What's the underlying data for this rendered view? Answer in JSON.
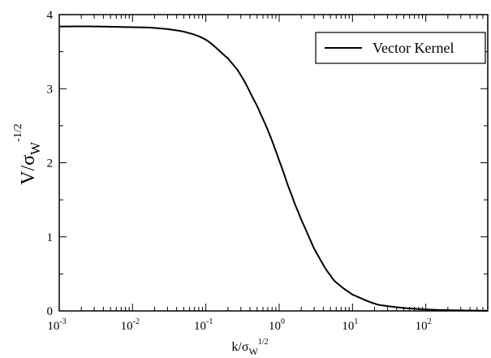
{
  "chart_data": {
    "type": "line",
    "xscale": "log",
    "xlim": [
      0.001,
      700
    ],
    "ylim": [
      0,
      4
    ],
    "x_ticks": [
      {
        "value": 0.001,
        "base": "10",
        "exp": "-3"
      },
      {
        "value": 0.01,
        "base": "10",
        "exp": "-2"
      },
      {
        "value": 0.1,
        "base": "10",
        "exp": "-1"
      },
      {
        "value": 1,
        "base": "10",
        "exp": "0"
      },
      {
        "value": 10,
        "base": "10",
        "exp": "1"
      },
      {
        "value": 100,
        "base": "10",
        "exp": "2"
      }
    ],
    "y_ticks": [
      {
        "value": 0,
        "label": "0"
      },
      {
        "value": 1,
        "label": "1"
      },
      {
        "value": 2,
        "label": "2"
      },
      {
        "value": 3,
        "label": "3"
      },
      {
        "value": 4,
        "label": "4"
      }
    ],
    "xlabel": {
      "main": "k/σ",
      "sub": "W",
      "sup": "1/2"
    },
    "ylabel": {
      "main": "V/σ",
      "sub": "W",
      "sup": "-1/2"
    },
    "legend_position": "top-right",
    "grid": false,
    "series": [
      {
        "name": "Vector Kernel",
        "color": "#000000",
        "x": [
          0.001,
          0.003,
          0.01,
          0.02,
          0.05,
          0.1,
          0.2,
          0.3,
          0.5,
          0.7,
          1,
          1.5,
          2,
          3,
          5,
          7,
          10,
          20,
          30,
          50,
          100,
          200,
          300,
          500,
          700
        ],
        "y": [
          3.84,
          3.84,
          3.83,
          3.82,
          3.77,
          3.66,
          3.41,
          3.18,
          2.77,
          2.44,
          2.03,
          1.55,
          1.23,
          0.84,
          0.48,
          0.33,
          0.22,
          0.1,
          0.065,
          0.04,
          0.02,
          0.01,
          0.007,
          0.004,
          0.003
        ]
      }
    ]
  }
}
